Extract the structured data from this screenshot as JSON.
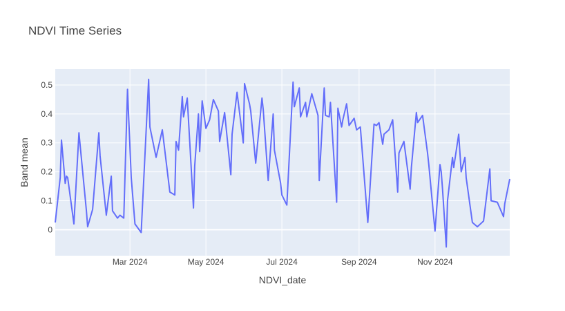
{
  "chart_data": {
    "type": "line",
    "title": "NDVI Time Series",
    "xlabel": "NDVI_date",
    "ylabel": "Band mean",
    "xlim": [
      "2024-01-01",
      "2024-12-31"
    ],
    "ylim": [
      -0.09,
      0.555
    ],
    "x_ticks": [
      {
        "date": "2024-03-01",
        "label": "Mar 2024"
      },
      {
        "date": "2024-05-01",
        "label": "May 2024"
      },
      {
        "date": "2024-07-01",
        "label": "Jul 2024"
      },
      {
        "date": "2024-09-01",
        "label": "Sep 2024"
      },
      {
        "date": "2024-11-01",
        "label": "Nov 2024"
      }
    ],
    "y_ticks": [
      {
        "value": 0,
        "label": "0"
      },
      {
        "value": 0.1,
        "label": "0.1"
      },
      {
        "value": 0.2,
        "label": "0.2"
      },
      {
        "value": 0.3,
        "label": "0.3"
      },
      {
        "value": 0.4,
        "label": "0.4"
      },
      {
        "value": 0.5,
        "label": "0.5"
      }
    ],
    "grid": true,
    "legend": "none",
    "colors": {
      "line": "#636efa",
      "plot_bg": "#e5ecf6",
      "grid": "#ffffff"
    },
    "series": [
      {
        "x": [
          "2024-01-01",
          "2024-01-05",
          "2024-01-06",
          "2024-01-09",
          "2024-01-10",
          "2024-01-11",
          "2024-01-16",
          "2024-01-20",
          "2024-01-26",
          "2024-01-27",
          "2024-01-31",
          "2024-02-05",
          "2024-02-06",
          "2024-02-11",
          "2024-02-15",
          "2024-02-16",
          "2024-02-20",
          "2024-02-21",
          "2024-02-22",
          "2024-02-25",
          "2024-02-28",
          "2024-03-02",
          "2024-03-05",
          "2024-03-10",
          "2024-03-16",
          "2024-03-17",
          "2024-03-22",
          "2024-03-27",
          "2024-04-02",
          "2024-04-06",
          "2024-04-07",
          "2024-04-09",
          "2024-04-12",
          "2024-04-13",
          "2024-04-16",
          "2024-04-21",
          "2024-04-22",
          "2024-04-25",
          "2024-04-26",
          "2024-04-28",
          "2024-05-01",
          "2024-05-04",
          "2024-05-07",
          "2024-05-11",
          "2024-05-12",
          "2024-05-16",
          "2024-05-21",
          "2024-05-22",
          "2024-05-26",
          "2024-05-31",
          "2024-06-01",
          "2024-06-05",
          "2024-06-06",
          "2024-06-10",
          "2024-06-15",
          "2024-06-16",
          "2024-06-20",
          "2024-06-24",
          "2024-06-25",
          "2024-06-30",
          "2024-07-01",
          "2024-07-05",
          "2024-07-10",
          "2024-07-11",
          "2024-07-15",
          "2024-07-16",
          "2024-07-20",
          "2024-07-21",
          "2024-07-25",
          "2024-07-30",
          "2024-07-31",
          "2024-08-04",
          "2024-08-05",
          "2024-08-08",
          "2024-08-09",
          "2024-08-14",
          "2024-08-15",
          "2024-08-18",
          "2024-08-19",
          "2024-08-22",
          "2024-08-24",
          "2024-08-28",
          "2024-08-30",
          "2024-09-02",
          "2024-09-08",
          "2024-09-13",
          "2024-09-15",
          "2024-09-17",
          "2024-09-20",
          "2024-09-21",
          "2024-09-25",
          "2024-09-28",
          "2024-10-02",
          "2024-10-03",
          "2024-10-07",
          "2024-10-12",
          "2024-10-13",
          "2024-10-17",
          "2024-10-18",
          "2024-10-22",
          "2024-10-26",
          "2024-10-27",
          "2024-11-01",
          "2024-11-05",
          "2024-11-06",
          "2024-11-07",
          "2024-11-10",
          "2024-11-11",
          "2024-11-15",
          "2024-11-16",
          "2024-11-20",
          "2024-11-22",
          "2024-11-25",
          "2024-11-26",
          "2024-12-01",
          "2024-12-05",
          "2024-12-10",
          "2024-12-15",
          "2024-12-16",
          "2024-12-21",
          "2024-12-26",
          "2024-12-27",
          "2024-12-31"
        ],
        "y": [
          0.025,
          0.18,
          0.31,
          0.16,
          0.185,
          0.18,
          0.02,
          0.335,
          0.065,
          0.01,
          0.07,
          0.335,
          0.255,
          0.05,
          0.185,
          0.065,
          0.04,
          0.045,
          0.05,
          0.04,
          0.485,
          0.18,
          0.02,
          -0.01,
          0.52,
          0.355,
          0.25,
          0.345,
          0.13,
          0.12,
          0.305,
          0.275,
          0.46,
          0.39,
          0.455,
          0.075,
          0.22,
          0.4,
          0.27,
          0.445,
          0.35,
          0.38,
          0.45,
          0.41,
          0.305,
          0.405,
          0.19,
          0.33,
          0.475,
          0.3,
          0.505,
          0.435,
          0.41,
          0.23,
          0.455,
          0.415,
          0.17,
          0.4,
          0.275,
          0.16,
          0.12,
          0.085,
          0.51,
          0.425,
          0.49,
          0.39,
          0.44,
          0.39,
          0.47,
          0.395,
          0.17,
          0.49,
          0.395,
          0.39,
          0.44,
          0.095,
          0.42,
          0.355,
          0.38,
          0.435,
          0.36,
          0.385,
          0.345,
          0.355,
          0.025,
          0.365,
          0.36,
          0.37,
          0.295,
          0.33,
          0.345,
          0.38,
          0.13,
          0.265,
          0.305,
          0.14,
          0.215,
          0.405,
          0.37,
          0.395,
          0.265,
          0.225,
          -0.005,
          0.225,
          0.2,
          0.14,
          -0.06,
          0.1,
          0.25,
          0.215,
          0.33,
          0.2,
          0.25,
          0.18,
          0.025,
          0.01,
          0.03,
          0.21,
          0.1,
          0.095,
          0.045,
          0.09,
          0.175
        ]
      }
    ]
  }
}
